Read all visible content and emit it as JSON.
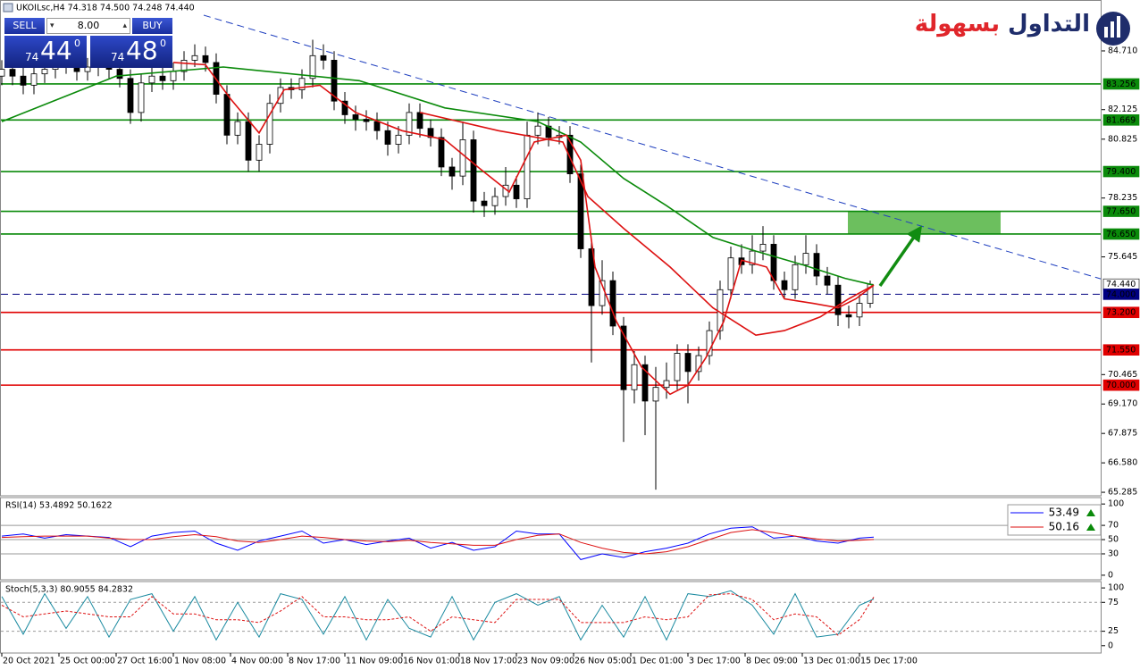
{
  "logo": [
    "التداول",
    "بسهولة"
  ],
  "trade_panel": {
    "sell": "SELL",
    "buy": "BUY",
    "lots": "8.00",
    "bid": [
      "74",
      "44",
      "0"
    ],
    "ask": [
      "74",
      "48",
      "0"
    ]
  },
  "chart_data": [
    {
      "type": "candlestick",
      "title": "UKOILsc,H4  74.318 74.500 74.248 74.440",
      "xlim": [
        -0.5,
        307.5
      ],
      "ylim": [
        65.13,
        86.95
      ],
      "xticks": [
        {
          "value": 0,
          "label": "20 Oct 2021"
        },
        {
          "value": 16,
          "label": "25 Oct 00:00"
        },
        {
          "value": 32,
          "label": "27 Oct 16:00"
        },
        {
          "value": 48,
          "label": "1 Nov 08:00"
        },
        {
          "value": 64,
          "label": "4 Nov 00:00"
        },
        {
          "value": 80,
          "label": "8 Nov 17:00"
        },
        {
          "value": 96,
          "label": "11 Nov 09:00"
        },
        {
          "value": 112,
          "label": "16 Nov 01:00"
        },
        {
          "value": 128,
          "label": "18 Nov 17:00"
        },
        {
          "value": 144,
          "label": "23 Nov 09:00"
        },
        {
          "value": 160,
          "label": "26 Nov 05:00"
        },
        {
          "value": 176,
          "label": "1 Dec 01:00"
        },
        {
          "value": 192,
          "label": "3 Dec 17:00"
        },
        {
          "value": 208,
          "label": "8 Dec 09:00"
        },
        {
          "value": 224,
          "label": "13 Dec 01:00"
        },
        {
          "value": 240,
          "label": "15 Dec 17:00"
        }
      ],
      "yticks": [
        {
          "value": 84.71,
          "label": "84.710"
        },
        82.125,
        80.825,
        78.235,
        75.645,
        70.465,
        {
          "value": 69.17,
          "label": "69.170"
        },
        67.875,
        {
          "value": 66.58,
          "label": "66.580"
        },
        65.285
      ],
      "up_color": "#ffffff",
      "down_color": "#000000",
      "wick_color": "#000000",
      "x": [
        0,
        3,
        6,
        9,
        12,
        15,
        18,
        21,
        24,
        27,
        30,
        33,
        36,
        39,
        42,
        45,
        48,
        51,
        54,
        57,
        60,
        63,
        66,
        69,
        72,
        75,
        78,
        81,
        84,
        87,
        90,
        93,
        96,
        99,
        102,
        105,
        108,
        111,
        114,
        117,
        120,
        123,
        126,
        129,
        132,
        135,
        138,
        141,
        144,
        147,
        150,
        153,
        156,
        159,
        162,
        165,
        168,
        171,
        174,
        177,
        180,
        183,
        186,
        189,
        192,
        195,
        198,
        201,
        204,
        207,
        210,
        213,
        216,
        219,
        222,
        225,
        228,
        231,
        234,
        237,
        240,
        243
      ],
      "open": [
        83.6,
        83.9,
        83.6,
        83.2,
        83.7,
        83.9,
        84.1,
        84.0,
        83.8,
        84.0,
        84.2,
        83.9,
        83.5,
        82.0,
        83.3,
        83.6,
        83.4,
        83.8,
        84.3,
        84.5,
        84.2,
        82.8,
        81.0,
        81.6,
        79.9,
        80.6,
        82.4,
        83.1,
        83.0,
        83.5,
        84.5,
        84.3,
        82.5,
        81.9,
        81.7,
        81.6,
        81.2,
        80.6,
        81.0,
        82.0,
        81.3,
        80.9,
        79.6,
        79.2,
        80.8,
        78.1,
        77.9,
        78.3,
        78.8,
        78.2,
        81.0,
        81.4,
        80.9,
        81.0,
        79.3,
        76.0,
        73.5,
        74.6,
        72.6,
        69.8,
        70.9,
        69.3,
        69.9,
        70.2,
        71.4,
        70.6,
        71.3,
        72.4,
        74.2,
        75.6,
        75.3,
        75.9,
        76.2,
        74.6,
        74.2,
        75.3,
        75.8,
        74.8,
        74.4,
        73.1,
        73.0,
        73.6
      ],
      "high": [
        84.3,
        84.3,
        84.0,
        84.1,
        84.3,
        84.5,
        84.5,
        84.4,
        84.4,
        84.6,
        84.6,
        84.3,
        83.9,
        83.7,
        84.0,
        84.0,
        84.2,
        84.7,
        85.0,
        84.9,
        84.6,
        83.2,
        82.0,
        82.0,
        81.0,
        82.8,
        83.5,
        83.5,
        83.9,
        85.2,
        85.0,
        84.7,
        82.9,
        82.3,
        82.1,
        82.0,
        81.6,
        81.4,
        82.4,
        82.4,
        81.7,
        81.3,
        80.0,
        81.6,
        81.2,
        78.5,
        78.7,
        79.6,
        79.2,
        81.6,
        82.0,
        81.8,
        81.4,
        81.4,
        79.7,
        76.4,
        75.5,
        75.0,
        73.0,
        71.5,
        71.3,
        70.8,
        71.0,
        71.8,
        71.8,
        71.7,
        72.8,
        74.6,
        76.1,
        76.2,
        76.6,
        77.0,
        76.6,
        75.0,
        75.7,
        76.6,
        76.2,
        75.2,
        74.8,
        73.5,
        74.0,
        74.6
      ],
      "low": [
        83.2,
        83.2,
        82.8,
        82.8,
        83.3,
        83.5,
        83.7,
        83.4,
        83.4,
        83.6,
        83.5,
        83.1,
        81.5,
        81.6,
        82.9,
        83.0,
        83.0,
        83.4,
        84.0,
        83.8,
        82.4,
        80.6,
        80.6,
        79.4,
        79.4,
        80.2,
        82.0,
        82.6,
        82.6,
        83.1,
        83.9,
        82.1,
        81.5,
        81.2,
        81.2,
        80.8,
        80.1,
        80.2,
        80.6,
        80.9,
        80.5,
        79.2,
        78.6,
        78.8,
        77.6,
        77.4,
        77.5,
        77.9,
        77.8,
        77.8,
        80.6,
        80.5,
        80.6,
        78.9,
        75.6,
        71.0,
        73.1,
        72.2,
        67.5,
        69.2,
        67.8,
        65.4,
        69.4,
        69.8,
        69.2,
        70.2,
        70.9,
        72.0,
        73.8,
        74.9,
        74.9,
        75.5,
        74.2,
        73.8,
        73.8,
        74.9,
        74.4,
        74.0,
        72.6,
        72.5,
        72.6,
        73.4
      ],
      "close": [
        83.9,
        83.6,
        83.2,
        83.7,
        83.9,
        84.1,
        84.0,
        83.8,
        84.0,
        84.2,
        83.9,
        83.5,
        82.0,
        83.3,
        83.6,
        83.4,
        83.8,
        84.3,
        84.5,
        84.2,
        82.8,
        81.0,
        81.6,
        79.9,
        80.6,
        82.4,
        83.1,
        83.0,
        83.5,
        84.5,
        84.3,
        82.5,
        81.9,
        81.7,
        81.6,
        81.2,
        80.6,
        81.0,
        82.0,
        81.3,
        80.9,
        79.6,
        79.2,
        80.8,
        78.1,
        77.9,
        78.3,
        78.8,
        78.2,
        81.0,
        81.4,
        80.9,
        81.0,
        79.3,
        76.0,
        73.5,
        74.6,
        72.6,
        69.8,
        70.9,
        69.3,
        69.9,
        70.2,
        71.4,
        70.6,
        71.3,
        72.4,
        74.2,
        75.6,
        75.3,
        75.9,
        76.2,
        74.6,
        74.2,
        75.3,
        75.8,
        74.8,
        74.4,
        73.1,
        73.0,
        73.6,
        74.44
      ],
      "series": [
        {
          "color": "#0a8a0a",
          "x": [
            0,
            32,
            62,
            100,
            124,
            150,
            162,
            174,
            186,
            199,
            211,
            224,
            236,
            244
          ],
          "values": [
            81.6,
            83.6,
            84.0,
            83.4,
            82.2,
            81.6,
            80.7,
            79.1,
            77.9,
            76.5,
            75.9,
            75.3,
            74.7,
            74.4
          ]
        },
        {
          "color": "#dd1111",
          "x": [
            117,
            139,
            157,
            164,
            174,
            187,
            199,
            211,
            219,
            229,
            237,
            244
          ],
          "values": [
            82.0,
            81.2,
            80.7,
            78.3,
            76.9,
            75.2,
            73.4,
            72.2,
            72.4,
            73.0,
            73.8,
            74.4
          ]
        },
        {
          "color": "#dd1111",
          "x": [
            48,
            57,
            64,
            72,
            79,
            89,
            99,
            112,
            124,
            134,
            142,
            149,
            158,
            162,
            166,
            172,
            179,
            187,
            192,
            197,
            202,
            207,
            214,
            219,
            227,
            234,
            239,
            244
          ],
          "values": [
            84.2,
            84.1,
            82.6,
            81.1,
            83.0,
            83.2,
            82.0,
            81.2,
            80.8,
            79.5,
            78.5,
            80.7,
            81.0,
            79.9,
            75.2,
            72.8,
            70.8,
            69.6,
            70.0,
            71.2,
            72.8,
            75.5,
            75.2,
            73.8,
            73.6,
            73.4,
            73.8,
            74.4
          ]
        }
      ],
      "levels": [
        {
          "value": 83.256,
          "label": "83.256",
          "color": "#0a8a0a",
          "style": "solid"
        },
        {
          "value": 81.669,
          "label": "81.669",
          "color": "#0a8a0a",
          "style": "solid"
        },
        {
          "value": 79.4,
          "label": "79.400",
          "color": "#0a8a0a",
          "style": "solid"
        },
        {
          "value": 77.65,
          "label": "77.650",
          "color": "#0a8a0a",
          "style": "solid"
        },
        {
          "value": 76.65,
          "label": "76.650",
          "color": "#0a8a0a",
          "style": "solid"
        },
        {
          "value": 74.44,
          "label": "74.440",
          "color": "#ffffff",
          "style": "none"
        },
        {
          "value": 74,
          "label": "74.000",
          "color": "#000080",
          "style": "dashed"
        },
        {
          "value": 73.2,
          "label": "73.200",
          "color": "#e00000",
          "style": "solid"
        },
        {
          "value": 71.55,
          "label": "71.550",
          "color": "#e00000",
          "style": "solid"
        },
        {
          "value": 70,
          "label": "70.000",
          "color": "#e00000",
          "style": "solid"
        }
      ],
      "trendline": {
        "x": [
          56.5,
          307.5
        ],
        "y": [
          86.28,
          74.68
        ],
        "color": "#1f3fbf"
      },
      "zone": {
        "x": [
          236.75,
          279.5
        ],
        "y": [
          76.65,
          77.65
        ],
        "color": "#6cbf5e"
      },
      "arrow": {
        "x": [
          245.75,
          256.5
        ],
        "y": [
          74.37,
          76.8
        ],
        "color": "#118c11"
      }
    },
    {
      "type": "line",
      "title": "RSI(14) 53.4892 50.1622",
      "xlim": [
        -0.5,
        307.5
      ],
      "ylim": [
        -6.4,
        109
      ],
      "yticks": [
        100,
        70,
        50,
        30,
        0
      ],
      "hlines": [
        70,
        50,
        30
      ],
      "hline_style": "solid",
      "series": [
        {
          "color": "#0000ff",
          "last": 53.49,
          "x": [
            0,
            6,
            12,
            18,
            24,
            30,
            36,
            42,
            48,
            54,
            60,
            66,
            72,
            78,
            84,
            90,
            96,
            102,
            108,
            114,
            120,
            126,
            132,
            138,
            144,
            150,
            156,
            162,
            168,
            174,
            180,
            186,
            192,
            198,
            204,
            210,
            216,
            222,
            228,
            234,
            240,
            244
          ],
          "values": [
            55,
            58,
            52,
            57,
            55,
            53,
            40,
            55,
            60,
            62,
            45,
            35,
            48,
            55,
            62,
            45,
            50,
            43,
            48,
            52,
            38,
            46,
            35,
            40,
            62,
            58,
            58,
            22,
            30,
            25,
            33,
            38,
            45,
            58,
            66,
            68,
            52,
            55,
            48,
            45,
            52,
            53.49
          ]
        },
        {
          "color": "#dd1111",
          "last": 50.16,
          "x": [
            0,
            6,
            12,
            18,
            24,
            30,
            36,
            42,
            48,
            54,
            60,
            66,
            72,
            78,
            84,
            90,
            96,
            102,
            108,
            114,
            120,
            126,
            132,
            138,
            144,
            150,
            156,
            162,
            168,
            174,
            180,
            186,
            192,
            198,
            204,
            210,
            216,
            222,
            228,
            234,
            240,
            244
          ],
          "values": [
            53,
            54,
            55,
            55,
            55,
            52,
            50,
            50,
            54,
            57,
            54,
            48,
            46,
            50,
            55,
            53,
            50,
            48,
            47,
            49,
            46,
            44,
            42,
            42,
            50,
            56,
            58,
            46,
            38,
            32,
            30,
            33,
            40,
            50,
            60,
            64,
            60,
            55,
            51,
            48,
            49,
            50.16
          ]
        }
      ]
    },
    {
      "type": "line",
      "title": "Stoch(5,3,3) 80.9055 84.2832",
      "xlim": [
        -0.5,
        307.5
      ],
      "ylim": [
        -12.7,
        111
      ],
      "yticks": [
        100,
        75,
        25,
        0
      ],
      "hlines": [
        75,
        25
      ],
      "hline_style": "dashed",
      "series": [
        {
          "color": "#1a8aa0",
          "x": [
            0,
            6,
            12,
            18,
            24,
            30,
            36,
            42,
            48,
            54,
            60,
            66,
            72,
            78,
            84,
            90,
            96,
            102,
            108,
            114,
            120,
            126,
            132,
            138,
            144,
            150,
            156,
            162,
            168,
            174,
            180,
            186,
            192,
            198,
            204,
            210,
            216,
            222,
            228,
            234,
            240,
            244
          ],
          "values": [
            85,
            20,
            90,
            30,
            85,
            15,
            80,
            90,
            25,
            85,
            10,
            75,
            15,
            90,
            80,
            20,
            85,
            10,
            80,
            30,
            15,
            85,
            10,
            75,
            90,
            70,
            85,
            10,
            70,
            15,
            85,
            10,
            90,
            85,
            95,
            70,
            20,
            90,
            15,
            20,
            70,
            80.9055
          ]
        },
        {
          "color": "#dd1111",
          "dash": true,
          "x": [
            0,
            6,
            12,
            18,
            24,
            30,
            36,
            42,
            48,
            54,
            60,
            66,
            72,
            78,
            84,
            90,
            96,
            102,
            108,
            114,
            120,
            126,
            132,
            138,
            144,
            150,
            156,
            162,
            168,
            174,
            180,
            186,
            192,
            198,
            204,
            210,
            216,
            222,
            228,
            234,
            240,
            244
          ],
          "values": [
            70,
            50,
            55,
            60,
            55,
            50,
            50,
            85,
            55,
            55,
            45,
            45,
            40,
            60,
            85,
            50,
            50,
            45,
            45,
            50,
            25,
            50,
            45,
            40,
            80,
            80,
            80,
            40,
            40,
            40,
            50,
            45,
            50,
            88,
            90,
            80,
            45,
            55,
            50,
            18,
            45,
            84.2832
          ]
        }
      ]
    }
  ]
}
